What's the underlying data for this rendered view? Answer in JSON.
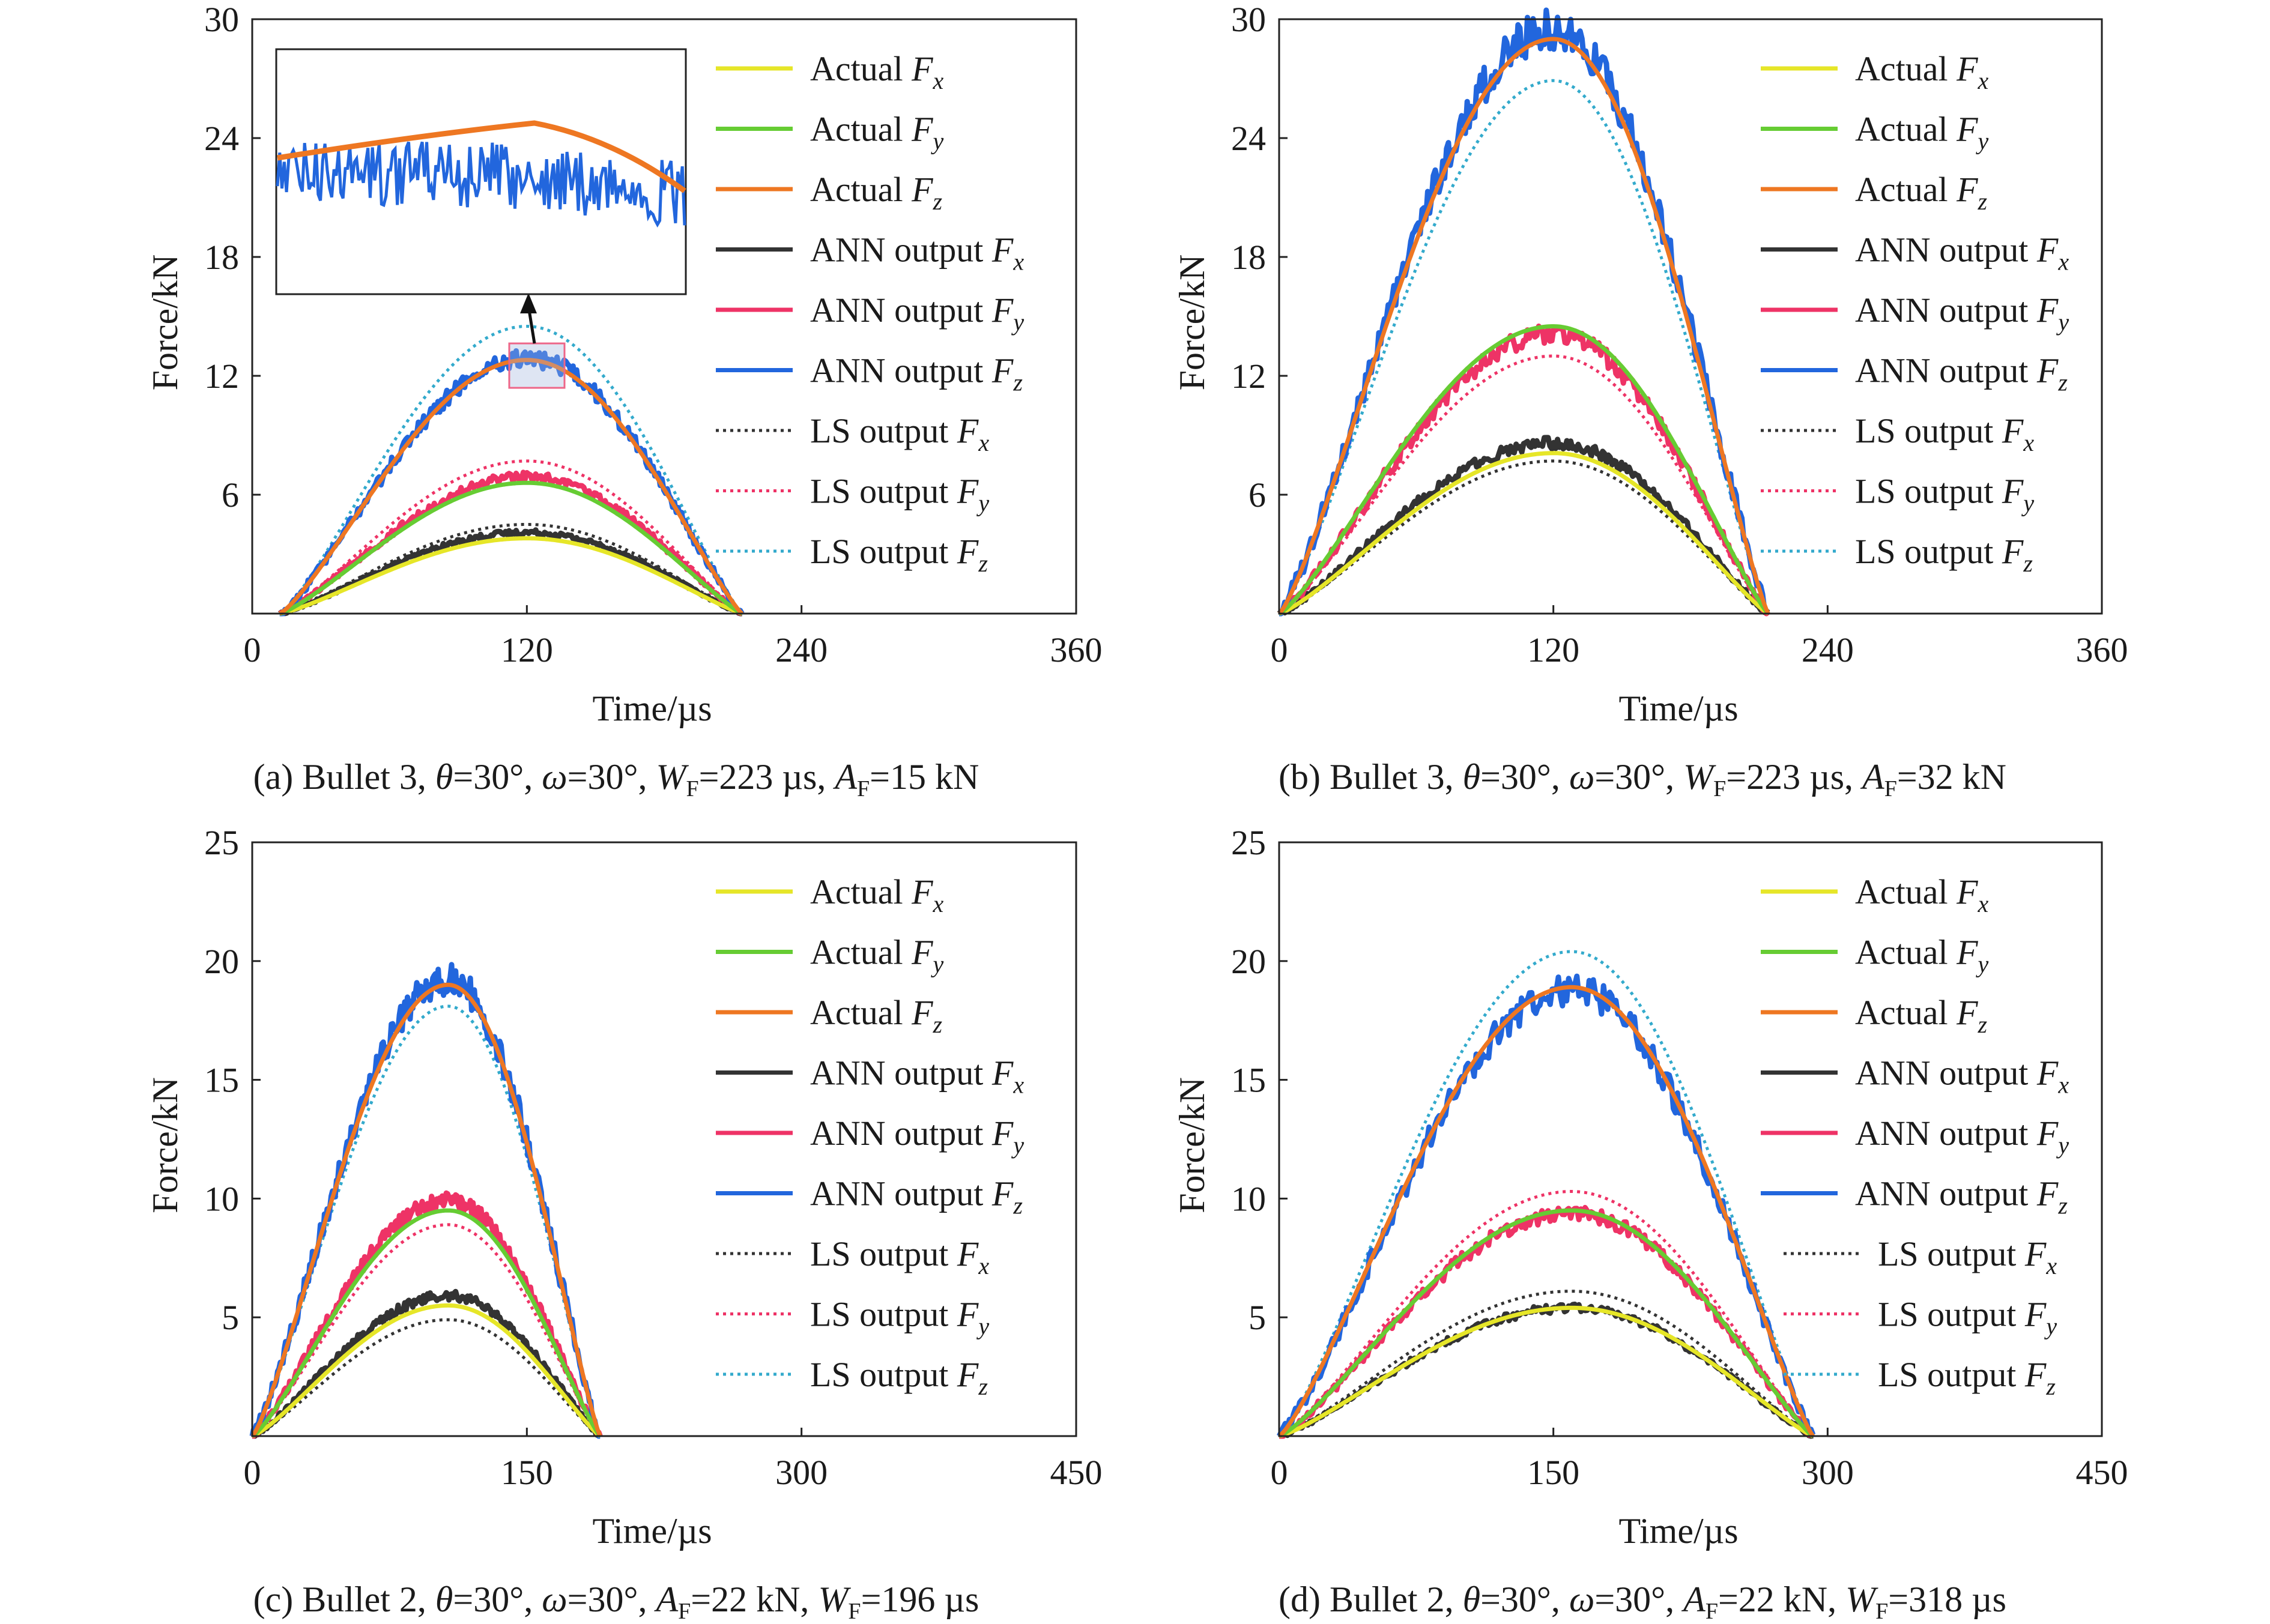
{
  "legend": [
    {
      "label": "Actual ",
      "sym": "F",
      "sub": "x",
      "color": "#e6e628",
      "dash": "solid"
    },
    {
      "label": "Actual ",
      "sym": "F",
      "sub": "y",
      "color": "#66cc33",
      "dash": "solid"
    },
    {
      "label": "Actual ",
      "sym": "F",
      "sub": "z",
      "color": "#ee7722",
      "dash": "solid"
    },
    {
      "label": "ANN output ",
      "sym": "F",
      "sub": "x",
      "color": "#333333",
      "dash": "solid"
    },
    {
      "label": "ANN output ",
      "sym": "F",
      "sub": "y",
      "color": "#ee3366",
      "dash": "solid"
    },
    {
      "label": "ANN output ",
      "sym": "F",
      "sub": "z",
      "color": "#2266dd",
      "dash": "solid"
    },
    {
      "label": "LS output ",
      "sym": "F",
      "sub": "x",
      "color": "#333333",
      "dash": "dot"
    },
    {
      "label": "LS output ",
      "sym": "F",
      "sub": "y",
      "color": "#ee3366",
      "dash": "dot"
    },
    {
      "label": "LS output ",
      "sym": "F",
      "sub": "z",
      "color": "#33aacc",
      "dash": "dot"
    }
  ],
  "chart_data": [
    {
      "type": "line",
      "panel": "a",
      "xlabel": "Time/µs",
      "ylabel": "Force/kN",
      "xlim": [
        0,
        360
      ],
      "ylim": [
        0,
        30
      ],
      "xticks": [
        "0",
        "120",
        "240",
        "360"
      ],
      "yticks": [
        "6",
        "12",
        "18",
        "24",
        "30"
      ],
      "has_inset": true,
      "lsz_color": "#33aacc",
      "caption": {
        "prefix": "(a) Bullet 3, ",
        "parts": [
          {
            "sym": "θ",
            "sub": "",
            "text": "=30°, "
          },
          {
            "sym": "ω",
            "sub": "",
            "text": "=30°, "
          },
          {
            "sym": "W",
            "sub": "F",
            "text": "=223 µs, "
          },
          {
            "sym": "A",
            "sub": "F",
            "text": "=15 kN"
          }
        ]
      },
      "pulse": {
        "start": 12,
        "peak_time": 120,
        "end": 214
      },
      "series": [
        {
          "name": "Actual Fx",
          "peak": 3.8
        },
        {
          "name": "Actual Fy",
          "peak": 6.6
        },
        {
          "name": "Actual Fz",
          "peak": 12.8
        },
        {
          "name": "ANN output Fx",
          "peak": 4.1
        },
        {
          "name": "ANN output Fy",
          "peak": 6.9
        },
        {
          "name": "ANN output Fz",
          "peak": 12.9
        },
        {
          "name": "LS output Fx",
          "peak": 4.5
        },
        {
          "name": "LS output Fy",
          "peak": 7.7
        },
        {
          "name": "LS output Fz",
          "peak": 14.5
        }
      ]
    },
    {
      "type": "line",
      "panel": "b",
      "xlabel": "Time/µs",
      "ylabel": "Force/kN",
      "xlim": [
        0,
        360
      ],
      "ylim": [
        0,
        30
      ],
      "xticks": [
        "0",
        "120",
        "240",
        "360"
      ],
      "yticks": [
        "6",
        "12",
        "18",
        "24",
        "30"
      ],
      "has_inset": false,
      "lsz_color": "#33aacc",
      "caption": {
        "prefix": "(b) Bullet 3, ",
        "parts": [
          {
            "sym": "θ",
            "sub": "",
            "text": "=30°, "
          },
          {
            "sym": "ω",
            "sub": "",
            "text": "=30°, "
          },
          {
            "sym": "W",
            "sub": "F",
            "text": "=223 µs, "
          },
          {
            "sym": "A",
            "sub": "F",
            "text": "=32 kN"
          }
        ]
      },
      "pulse": {
        "start": 0,
        "peak_time": 120,
        "end": 214
      },
      "series": [
        {
          "name": "Actual Fx",
          "peak": 8.1
        },
        {
          "name": "Actual Fy",
          "peak": 14.5
        },
        {
          "name": "Actual Fz",
          "peak": 29.0
        },
        {
          "name": "ANN output Fx",
          "peak": 8.6
        },
        {
          "name": "ANN output Fy",
          "peak": 14.1
        },
        {
          "name": "ANN output Fz",
          "peak": 29.5
        },
        {
          "name": "LS output Fx",
          "peak": 7.7
        },
        {
          "name": "LS output Fy",
          "peak": 13.0
        },
        {
          "name": "LS output Fz",
          "peak": 26.9
        }
      ]
    },
    {
      "type": "line",
      "panel": "c",
      "xlabel": "Time/µs",
      "ylabel": "Force/kN",
      "xlim": [
        0,
        450
      ],
      "ylim": [
        0,
        25
      ],
      "xticks": [
        "0",
        "150",
        "300",
        "450"
      ],
      "yticks": [
        "5",
        "10",
        "15",
        "20",
        "25"
      ],
      "has_inset": false,
      "lsz_color": "#33aacc",
      "caption": {
        "prefix": "(c) Bullet 2, ",
        "parts": [
          {
            "sym": "θ",
            "sub": "",
            "text": "=30°, "
          },
          {
            "sym": "ω",
            "sub": "",
            "text": "=30°, "
          },
          {
            "sym": "A",
            "sub": "F",
            "text": "=22 kN, "
          },
          {
            "sym": "W",
            "sub": "F",
            "text": "=196 µs"
          }
        ]
      },
      "pulse": {
        "start": 0,
        "peak_time": 107,
        "end": 190
      },
      "series": [
        {
          "name": "Actual Fx",
          "peak": 5.5
        },
        {
          "name": "Actual Fy",
          "peak": 9.5
        },
        {
          "name": "Actual Fz",
          "peak": 19.0
        },
        {
          "name": "ANN output Fx",
          "peak": 5.9
        },
        {
          "name": "ANN output Fy",
          "peak": 9.9
        },
        {
          "name": "ANN output Fz",
          "peak": 19.2
        },
        {
          "name": "LS output Fx",
          "peak": 4.9
        },
        {
          "name": "LS output Fy",
          "peak": 8.9
        },
        {
          "name": "LS output Fz",
          "peak": 18.1
        }
      ]
    },
    {
      "type": "line",
      "panel": "d",
      "xlabel": "Time/µs",
      "ylabel": "Force/kN",
      "xlim": [
        0,
        450
      ],
      "ylim": [
        0,
        25
      ],
      "xticks": [
        "0",
        "150",
        "300",
        "450"
      ],
      "yticks": [
        "5",
        "10",
        "15",
        "20",
        "25"
      ],
      "has_inset": false,
      "lsz_color": "#33aacc",
      "caption": {
        "prefix": "(d) Bullet 2, ",
        "parts": [
          {
            "sym": "θ",
            "sub": "",
            "text": "=30°, "
          },
          {
            "sym": "ω",
            "sub": "",
            "text": "=30°, "
          },
          {
            "sym": "A",
            "sub": "F",
            "text": "=22 kN, "
          },
          {
            "sym": "W",
            "sub": "F",
            "text": "=318 µs"
          }
        ]
      },
      "pulse": {
        "start": 0,
        "peak_time": 160,
        "end": 292
      },
      "series": [
        {
          "name": "Actual Fx",
          "peak": 5.4
        },
        {
          "name": "Actual Fy",
          "peak": 9.5
        },
        {
          "name": "Actual Fz",
          "peak": 18.9
        },
        {
          "name": "ANN output Fx",
          "peak": 5.4
        },
        {
          "name": "ANN output Fy",
          "peak": 9.4
        },
        {
          "name": "ANN output Fz",
          "peak": 18.8
        },
        {
          "name": "LS output Fx",
          "peak": 6.1
        },
        {
          "name": "LS output Fy",
          "peak": 10.3
        },
        {
          "name": "LS output Fz",
          "peak": 20.4
        }
      ]
    }
  ]
}
